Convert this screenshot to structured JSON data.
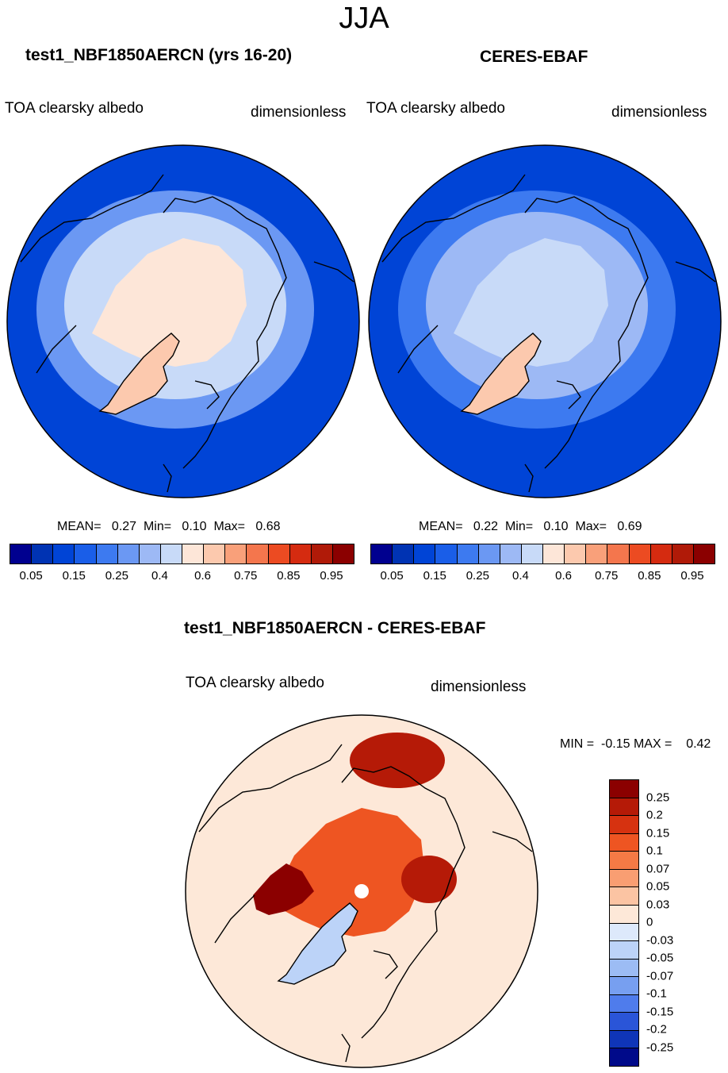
{
  "main_title": "JJA",
  "chart_data": [
    {
      "type": "heatmap",
      "projection": "north polar stereographic",
      "title": "test1_NBF1850AERCN (yrs 16-20)",
      "variable": "TOA clearsky albedo",
      "units": "dimensionless",
      "stats": {
        "mean_label": "MEAN=",
        "mean": "0.27",
        "min_label": "Min=",
        "min": "0.10",
        "max_label": "Max=",
        "max": "0.68"
      },
      "levels": [
        "0.05",
        "0.15",
        "0.25",
        "0.4",
        "0.6",
        "0.75",
        "0.85",
        "0.95"
      ],
      "colors": [
        "#00008f",
        "#0033b3",
        "#0044d6",
        "#1a5ee8",
        "#3d7af0",
        "#6b98f3",
        "#9db9f5",
        "#c8daf8",
        "#fde6d8",
        "#fcc9ae",
        "#f9a07a",
        "#f4764d",
        "#ec4b22",
        "#d52b10",
        "#b01a08",
        "#8b0000"
      ],
      "regions": {
        "ocean": 0.1,
        "subarctic": 0.25,
        "arctic_ocean": 0.55,
        "greenland": 0.62
      }
    },
    {
      "type": "heatmap",
      "projection": "north polar stereographic",
      "title": "CERES-EBAF",
      "variable": "TOA clearsky albedo",
      "units": "dimensionless",
      "stats": {
        "mean_label": "MEAN=",
        "mean": "0.22",
        "min_label": "Min=",
        "min": "0.10",
        "max_label": "Max=",
        "max": "0.69"
      },
      "levels": [
        "0.05",
        "0.15",
        "0.25",
        "0.4",
        "0.6",
        "0.75",
        "0.85",
        "0.95"
      ],
      "colors": [
        "#00008f",
        "#0033b3",
        "#0044d6",
        "#1a5ee8",
        "#3d7af0",
        "#6b98f3",
        "#9db9f5",
        "#c8daf8",
        "#fde6d8",
        "#fcc9ae",
        "#f9a07a",
        "#f4764d",
        "#ec4b22",
        "#d52b10",
        "#b01a08",
        "#8b0000"
      ],
      "regions": {
        "ocean": 0.1,
        "subarctic": 0.2,
        "arctic_ocean": 0.42,
        "greenland": 0.62
      }
    },
    {
      "type": "heatmap",
      "projection": "north polar stereographic",
      "title": "test1_NBF1850AERCN - CERES-EBAF",
      "variable": "TOA clearsky albedo",
      "units": "dimensionless",
      "stats": {
        "min_label": "MIN =",
        "min": "-0.15",
        "max_label": "MAX =",
        "max": "0.42"
      },
      "levels": [
        "0.25",
        "0.2",
        "0.15",
        "0.1",
        "0.07",
        "0.05",
        "0.03",
        "0",
        "-0.03",
        "-0.05",
        "-0.07",
        "-0.1",
        "-0.15",
        "-0.2",
        "-0.25"
      ],
      "colors": [
        "#8b0000",
        "#b51a07",
        "#d63210",
        "#ee5522",
        "#f57a45",
        "#f99e72",
        "#fbc4a3",
        "#fde8d8",
        "#dde9fb",
        "#bcd3f8",
        "#9cbcf4",
        "#779ff0",
        "#4f7cec",
        "#2a55d8",
        "#0f35b8",
        "#000a8a"
      ],
      "regions": {
        "ocean": 0.0,
        "arctic_ocean": 0.12,
        "archipelago": 0.25,
        "greenland": -0.04
      }
    }
  ]
}
